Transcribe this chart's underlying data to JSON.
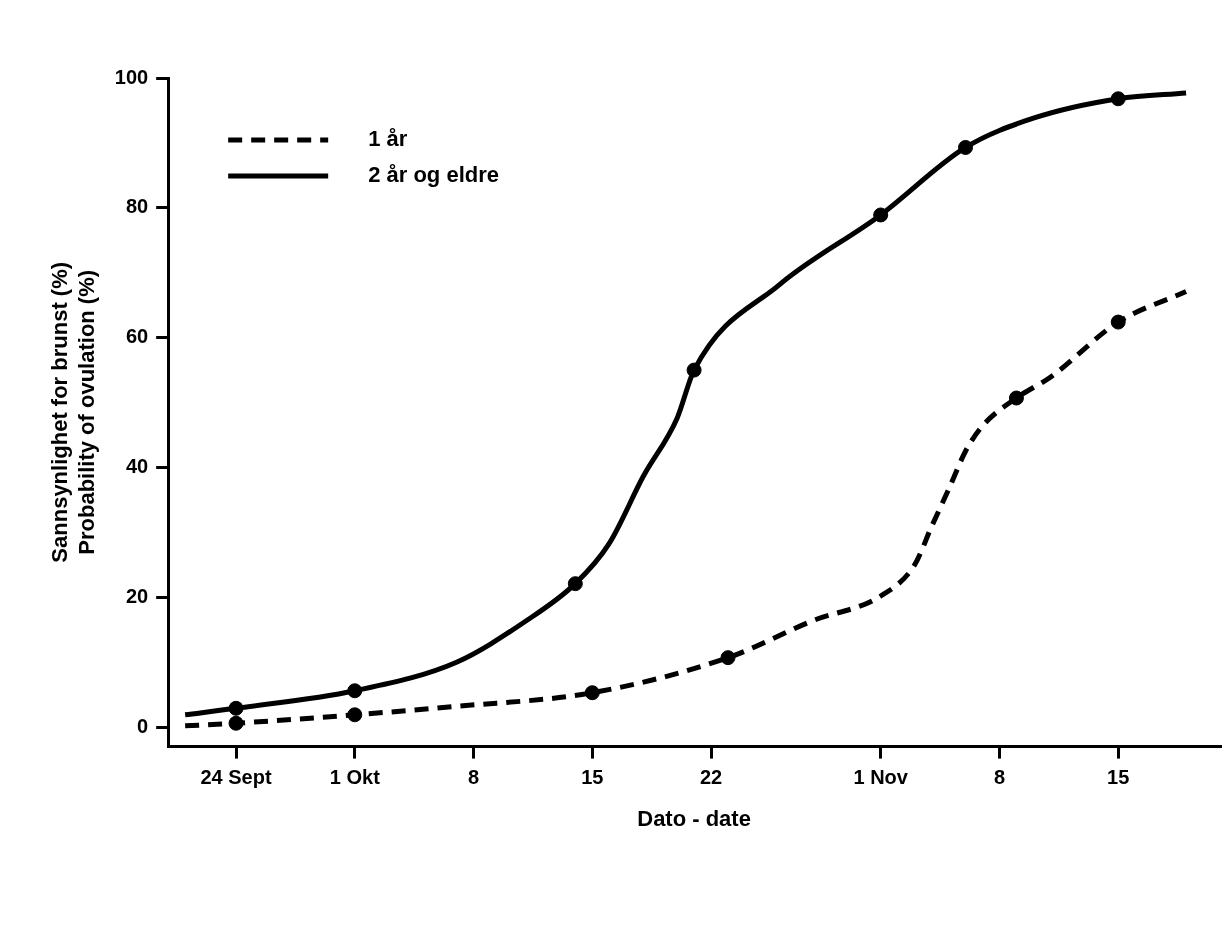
{
  "chart_data": {
    "type": "line",
    "xlabel": "Dato - date",
    "ylabel": "Sannsynlighet for brunst (%)\nProbability of ovulation (%)",
    "xlim": [
      "--09-20",
      "--11-21"
    ],
    "ylim": [
      -3,
      100
    ],
    "xticks": [
      {
        "value": "--09-24",
        "label": "24 Sept"
      },
      {
        "value": "--10-01",
        "label": "1 Okt"
      },
      {
        "value": "--10-08",
        "label": "8"
      },
      {
        "value": "--10-15",
        "label": "15"
      },
      {
        "value": "--10-22",
        "label": "22"
      },
      {
        "value": "--11-01",
        "label": "1 Nov"
      },
      {
        "value": "--11-08",
        "label": "8"
      },
      {
        "value": "--11-15",
        "label": "15"
      }
    ],
    "yticks": [
      0,
      20,
      40,
      60,
      80,
      100
    ],
    "grid": false,
    "legend": "top left",
    "series": [
      {
        "name": "1 år",
        "line_style": "dashed",
        "marker": "none",
        "color": "#000000",
        "x": [
          "--09-21",
          "--09-24",
          "--10-01",
          "--10-07",
          "--10-15",
          "--10-23",
          "--10-28",
          "--11-01",
          "--11-03",
          "--11-04",
          "--11-05",
          "--11-06",
          "--11-07",
          "--11-09",
          "--11-11",
          "--11-15",
          "--11-19"
        ],
        "values": [
          0.2,
          0.6,
          1.9,
          3.2,
          5.3,
          10.7,
          16.4,
          20.2,
          25.0,
          30.9,
          36.6,
          42.5,
          46.4,
          50.7,
          53.9,
          62.4,
          67.1
        ]
      },
      {
        "name": "2 år og eldre",
        "line_style": "solid",
        "marker": "none",
        "color": "#000000",
        "x": [
          "--09-21",
          "--09-24",
          "--10-01",
          "--10-07",
          "--10-11",
          "--10-14",
          "--10-16",
          "--10-18",
          "--10-20",
          "--10-21",
          "--10-26",
          "--11-01",
          "--11-06",
          "--11-10",
          "--11-15",
          "--11-19"
        ],
        "values": [
          1.9,
          2.9,
          5.6,
          10.0,
          16.2,
          22.1,
          28.3,
          38.6,
          47.6,
          55.0,
          68.1,
          78.9,
          89.3,
          93.8,
          96.8,
          97.7
        ]
      },
      {
        "type": "scatter",
        "marker": "circle",
        "color": "#000000",
        "x": [
          "--09-24",
          "--10-01",
          "--10-15",
          "--10-23",
          "--11-09",
          "--11-15"
        ],
        "values": [
          0.6,
          1.9,
          5.3,
          10.7,
          50.7,
          62.4
        ]
      },
      {
        "type": "scatter",
        "marker": "circle",
        "color": "#000000",
        "x": [
          "--09-24",
          "--10-01",
          "--10-14",
          "--10-21",
          "--11-01",
          "--11-06",
          "--11-15"
        ],
        "values": [
          2.9,
          5.6,
          22.1,
          55.0,
          78.9,
          89.3,
          96.8
        ]
      }
    ]
  }
}
